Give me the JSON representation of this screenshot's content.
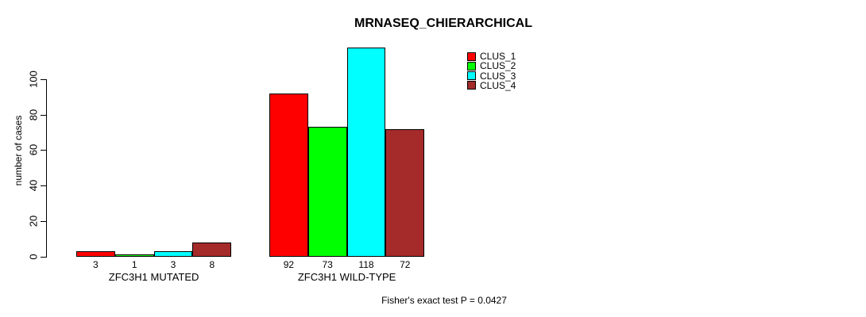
{
  "chart_data": {
    "type": "bar",
    "title": "MRNASEQ_CHIERARCHICAL",
    "ylabel": "number of cases",
    "xlabel": "",
    "ylim": [
      0,
      118
    ],
    "yticks": [
      0,
      20,
      40,
      60,
      80,
      100
    ],
    "grid": false,
    "legend_position": "top-right",
    "categories": [
      "ZFC3H1 MUTATED",
      "ZFC3H1 WILD-TYPE"
    ],
    "series": [
      {
        "name": "CLUS_1",
        "color": "#ff0000",
        "values": [
          3,
          92
        ]
      },
      {
        "name": "CLUS_2",
        "color": "#00ff00",
        "values": [
          1,
          73
        ]
      },
      {
        "name": "CLUS_3",
        "color": "#00ffff",
        "values": [
          3,
          118
        ]
      },
      {
        "name": "CLUS_4",
        "color": "#a52a2a",
        "values": [
          8,
          72
        ]
      }
    ],
    "bar_value_labels": [
      [
        3,
        1,
        3,
        8
      ],
      [
        92,
        73,
        118,
        72
      ]
    ],
    "annotation": "Fisher's exact test P = 0.0427"
  },
  "colors": {
    "background": "#ffffff",
    "axis": "#000000",
    "text": "#000000"
  }
}
